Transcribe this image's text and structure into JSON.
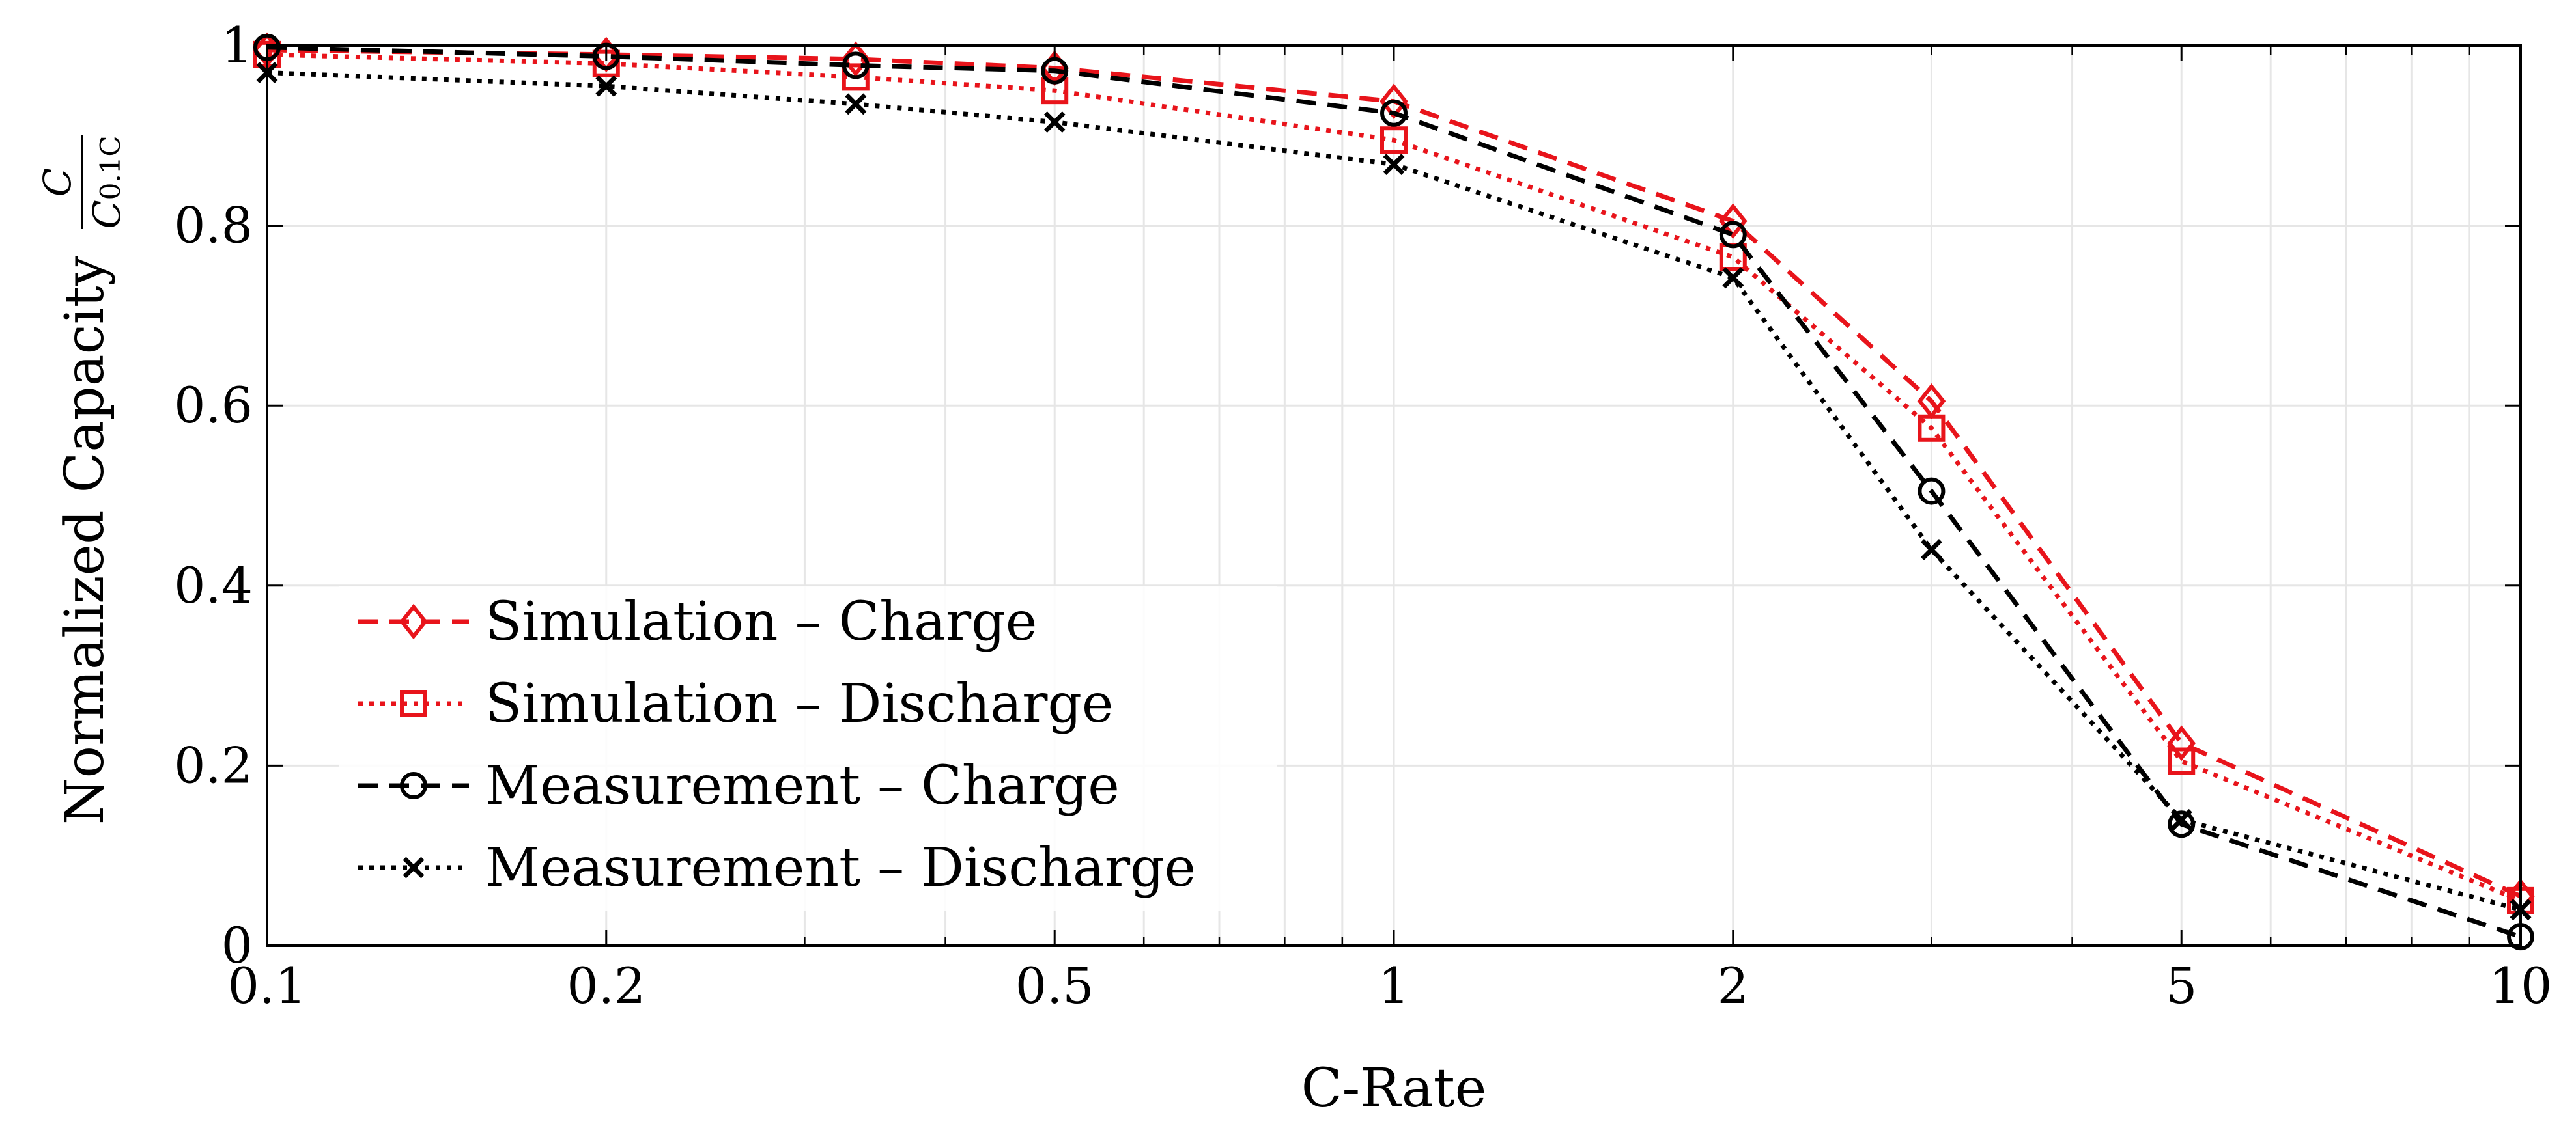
{
  "chart_data": {
    "type": "line",
    "xscale": "log",
    "title": "",
    "xlabel": "C-Rate",
    "ylabel": {
      "text": "Normalized Capacity",
      "fraction_numerator": "C",
      "fraction_denominator_main": "C",
      "fraction_denominator_sub": "0.1C"
    },
    "xlim": [
      0.1,
      10
    ],
    "ylim": [
      0,
      1
    ],
    "xticks": [
      {
        "value": 0.1,
        "label": "0.1"
      },
      {
        "value": 0.2,
        "label": "0.2"
      },
      {
        "value": 0.5,
        "label": "0.5"
      },
      {
        "value": 1,
        "label": "1"
      },
      {
        "value": 2,
        "label": "2"
      },
      {
        "value": 5,
        "label": "5"
      },
      {
        "value": 10,
        "label": "10"
      }
    ],
    "yticks": [
      {
        "value": 0,
        "label": "0"
      },
      {
        "value": 0.2,
        "label": "0.2"
      },
      {
        "value": 0.4,
        "label": "0.4"
      },
      {
        "value": 0.6,
        "label": "0.6"
      },
      {
        "value": 0.8,
        "label": "0.8"
      },
      {
        "value": 1,
        "label": "1"
      }
    ],
    "grid": true,
    "legend_position": "bottom-left",
    "x": [
      0.1,
      0.2,
      0.333,
      0.5,
      1,
      2,
      3,
      5,
      10
    ],
    "series": [
      {
        "name": "Simulation – Charge",
        "color": "#e8141b",
        "dash": "dashed",
        "marker": "diamond",
        "values": [
          0.995,
          0.99,
          0.985,
          0.975,
          0.938,
          0.805,
          0.605,
          0.225,
          0.055
        ]
      },
      {
        "name": "Simulation – Discharge",
        "color": "#e8141b",
        "dash": "dotted",
        "marker": "square",
        "values": [
          0.99,
          0.98,
          0.965,
          0.95,
          0.895,
          0.765,
          0.575,
          0.205,
          0.05
        ]
      },
      {
        "name": "Measurement – Charge",
        "color": "#000000",
        "dash": "dashed",
        "marker": "circle",
        "values": [
          0.998,
          0.988,
          0.978,
          0.972,
          0.925,
          0.79,
          0.505,
          0.135,
          0.01
        ]
      },
      {
        "name": "Measurement – Discharge",
        "color": "#000000",
        "dash": "dotted",
        "marker": "x",
        "values": [
          0.97,
          0.955,
          0.935,
          0.915,
          0.868,
          0.742,
          0.44,
          0.14,
          0.04
        ]
      }
    ]
  }
}
